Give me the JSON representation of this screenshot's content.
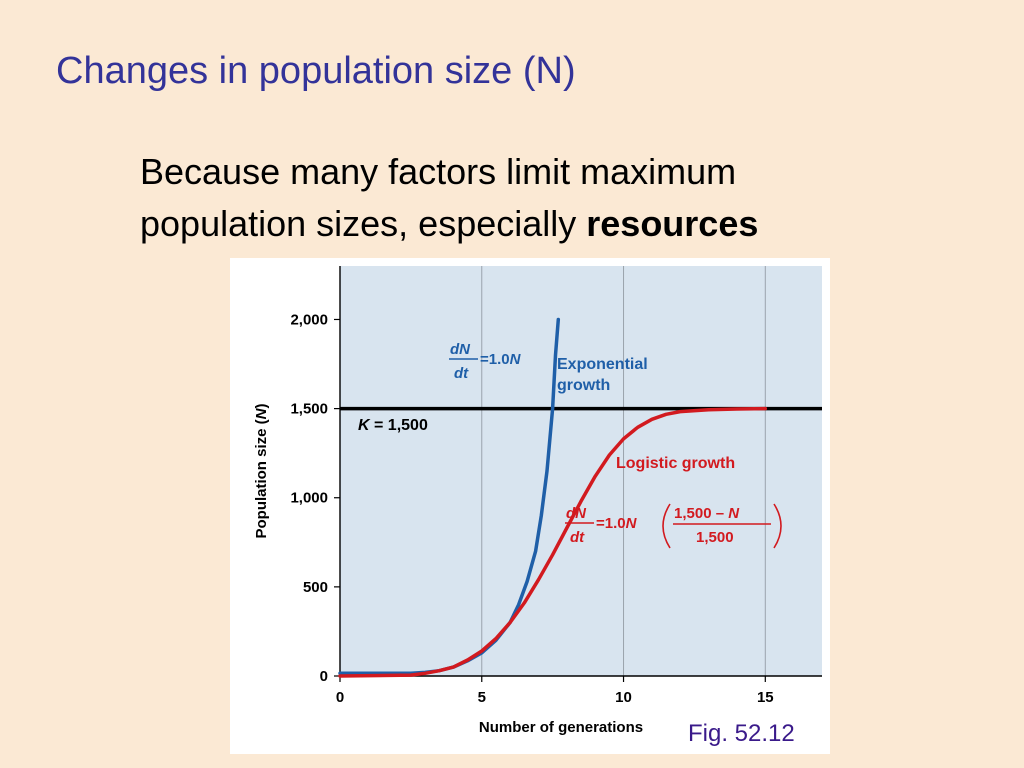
{
  "slide": {
    "title": "Changes in population size (N)",
    "body_line1": "Because many factors limit maximum",
    "body_line2_prefix": "population sizes, especially ",
    "body_line2_bold": "resources",
    "figure_caption": "Fig. 52.12"
  },
  "chart_data": {
    "type": "line",
    "title": "",
    "xlabel": "Number of generations",
    "ylabel_prefix": "Population size (",
    "ylabel_var": "N",
    "ylabel_suffix": ")",
    "xlim": [
      0,
      17
    ],
    "ylim": [
      0,
      2300
    ],
    "x_ticks": [
      0,
      5,
      10,
      15
    ],
    "y_ticks": [
      0,
      500,
      1000,
      1500,
      2000
    ],
    "x_tick_labels": [
      "0",
      "5",
      "10",
      "15"
    ],
    "y_tick_labels": [
      "0",
      "500",
      "1,000",
      "1,500",
      "2,000"
    ],
    "grid": "vertical",
    "colors": {
      "plot_background": "#d8e4ef",
      "exponential": "#1f5fa8",
      "logistic": "#d21a1f",
      "carrying_capacity": "#000000",
      "exponential_label": "#1f5fa8",
      "logistic_label": "#d21a1f"
    },
    "carrying_capacity": {
      "value": 1500,
      "label_var": "K",
      "label_rest": " = 1,500"
    },
    "series": [
      {
        "name": "Exponential growth",
        "label_line1": "Exponential",
        "label_line2": "growth",
        "equation": {
          "num_d": "d",
          "num_var": "N",
          "den": "dt",
          "rhs_prefix": "=1.0",
          "rhs_var": "N"
        },
        "x": [
          0,
          2.5,
          3,
          3.5,
          4,
          4.5,
          5,
          5.5,
          6,
          6.3,
          6.6,
          6.9,
          7.1,
          7.3,
          7.5,
          7.6,
          7.7
        ],
        "y": [
          15,
          15,
          20,
          30,
          50,
          85,
          130,
          200,
          300,
          400,
          530,
          700,
          900,
          1150,
          1500,
          1800,
          2000
        ]
      },
      {
        "name": "Logistic growth",
        "label_line1": "Logistic growth",
        "equation": {
          "num_d": "d",
          "num_var": "N",
          "den": "dt",
          "rhs_prefix": "=1.0",
          "rhs_var": "N",
          "frac_num": "1,500 – ",
          "frac_num_var": "N",
          "frac_den": "1,500"
        },
        "x": [
          0,
          2.5,
          3,
          3.5,
          4,
          4.5,
          5,
          5.5,
          6,
          6.5,
          7,
          7.5,
          8,
          8.5,
          9,
          9.5,
          10,
          10.5,
          11,
          11.5,
          12,
          13,
          14,
          15
        ],
        "y": [
          0,
          5,
          15,
          30,
          50,
          90,
          140,
          210,
          300,
          410,
          540,
          680,
          830,
          980,
          1120,
          1240,
          1330,
          1395,
          1440,
          1468,
          1483,
          1494,
          1498,
          1500
        ]
      }
    ]
  }
}
